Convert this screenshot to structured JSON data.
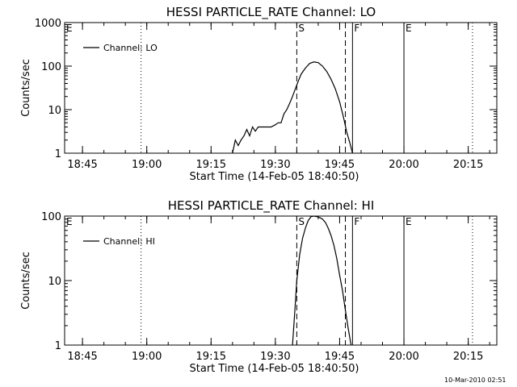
{
  "footer": {
    "timestamp": "10-Mar-2010 02:51"
  },
  "chart_data": [
    {
      "type": "line",
      "title": "HESSI PARTICLE_RATE Channel: LO",
      "xlabel": "Start Time (14-Feb-05 18:40:50)",
      "ylabel": "Counts/sec",
      "yscale": "log",
      "ylim": [
        1,
        1000
      ],
      "xlim": [
        "18:40:50",
        "20:21:40"
      ],
      "x_ticks": [
        "18:45",
        "19:00",
        "19:15",
        "19:30",
        "19:45",
        "20:00",
        "20:15"
      ],
      "y_ticks": [
        "1",
        "10",
        "100",
        "1000"
      ],
      "legend": {
        "position": "top-left",
        "entries": [
          "Channel: LO"
        ]
      },
      "markers": [
        {
          "label": "E",
          "time": "18:40:50",
          "style": "solid"
        },
        {
          "label": "S",
          "time": "19:35:00",
          "style": "dashed"
        },
        {
          "label": "F",
          "time": "19:48:00",
          "style": "solid"
        },
        {
          "label": "E",
          "time": "20:00:00",
          "style": "solid"
        }
      ],
      "guides": [
        {
          "time": "18:58:40",
          "style": "dotted"
        },
        {
          "time": "19:46:20",
          "style": "dashed"
        },
        {
          "time": "20:16:00",
          "style": "dotted"
        }
      ],
      "series": [
        {
          "name": "Channel: LO",
          "x": [
            "19:20:00",
            "19:20:40",
            "19:21:20",
            "19:22:00",
            "19:22:40",
            "19:23:20",
            "19:24:00",
            "19:24:40",
            "19:25:20",
            "19:26:00",
            "19:27:00",
            "19:28:00",
            "19:29:00",
            "19:30:00",
            "19:30:40",
            "19:31:20",
            "19:32:00",
            "19:32:40",
            "19:33:20",
            "19:34:00",
            "19:34:40",
            "19:35:20",
            "19:36:00",
            "19:37:00",
            "19:38:00",
            "19:39:00",
            "19:40:00",
            "19:41:00",
            "19:42:00",
            "19:43:00",
            "19:44:00",
            "19:45:00",
            "19:46:00",
            "19:46:40",
            "19:47:20",
            "19:48:00"
          ],
          "y": [
            1,
            2,
            1.5,
            2,
            2.5,
            3.5,
            2.5,
            4,
            3.2,
            4,
            4,
            4,
            4,
            4.5,
            5,
            5,
            8,
            10,
            14,
            20,
            30,
            45,
            65,
            90,
            115,
            125,
            120,
            100,
            75,
            50,
            30,
            15,
            6,
            3,
            1.8,
            1
          ]
        }
      ]
    },
    {
      "type": "line",
      "title": "HESSI PARTICLE_RATE Channel: HI",
      "xlabel": "Start Time (14-Feb-05 18:40:50)",
      "ylabel": "Counts/sec",
      "yscale": "log",
      "ylim": [
        1,
        100
      ],
      "xlim": [
        "18:40:50",
        "20:21:40"
      ],
      "x_ticks": [
        "18:45",
        "19:00",
        "19:15",
        "19:30",
        "19:45",
        "20:00",
        "20:15"
      ],
      "y_ticks": [
        "1",
        "10",
        "100"
      ],
      "legend": {
        "position": "top-left",
        "entries": [
          "Channel: HI"
        ]
      },
      "markers": [
        {
          "label": "E",
          "time": "18:40:50",
          "style": "solid"
        },
        {
          "label": "S",
          "time": "19:35:00",
          "style": "dashed"
        },
        {
          "label": "F",
          "time": "19:48:00",
          "style": "solid"
        },
        {
          "label": "E",
          "time": "20:00:00",
          "style": "solid"
        }
      ],
      "guides": [
        {
          "time": "18:58:40",
          "style": "dotted"
        },
        {
          "time": "19:46:20",
          "style": "dashed"
        },
        {
          "time": "20:16:00",
          "style": "dotted"
        }
      ],
      "series": [
        {
          "name": "Channel: HI",
          "x": [
            "19:34:00",
            "19:34:30",
            "19:35:00",
            "19:35:40",
            "19:36:20",
            "19:37:00",
            "19:37:40",
            "19:38:20",
            "19:39:00",
            "19:39:40",
            "19:40:20",
            "19:41:00",
            "19:41:40",
            "19:42:20",
            "19:43:00",
            "19:43:40",
            "19:44:20",
            "19:45:00",
            "19:45:40",
            "19:46:20",
            "19:47:00",
            "19:47:40"
          ],
          "y": [
            1,
            3,
            10,
            25,
            45,
            65,
            85,
            98,
            100,
            98,
            95,
            90,
            80,
            65,
            50,
            35,
            22,
            12,
            7,
            3.5,
            1.8,
            1
          ]
        }
      ]
    }
  ]
}
